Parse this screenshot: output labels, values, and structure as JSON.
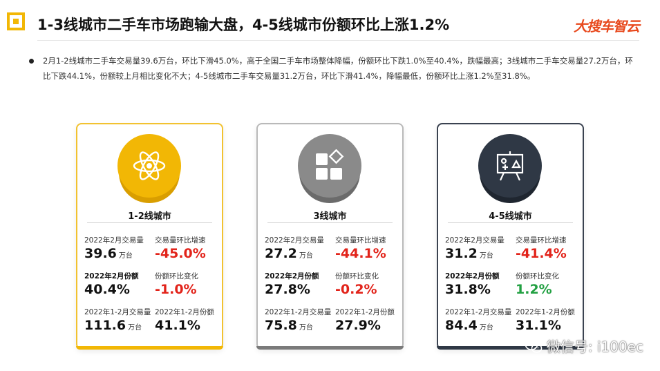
{
  "header": {
    "title": "1-3线城市二手车市场跑输大盘，4-5线城市份额环比上涨1.2%",
    "brand": "大搜车智云"
  },
  "summary": "2月1-2线城市二手车交易量39.6万台，环比下滑45.0%，高于全国二手车市场整体降幅，份额环比下跌1.0%至40.4%，跌幅最高；3线城市二手车交易量27.2万台，环比下跌44.1%，份额较上月相比变化不大；4-5线城市二手车交易量31.2万台，环比下滑41.4%，降幅最低，份额环比上涨1.2%至31.8%。",
  "cards": [
    {
      "tier": "1-2线城市",
      "icon": "atom-icon",
      "color": "#f2b705",
      "volume_label": "2022年2月交易量",
      "volume_value": "39.6",
      "unit": "万台",
      "volume_mom_label": "交易量环比增速",
      "volume_mom_value": "-45.0%",
      "share_label": "2022年2月份额",
      "share_value": "40.4%",
      "share_mom_label": "份额环比变化",
      "share_mom_value": "-1.0%",
      "ytd_volume_label": "2022年1-2月交易量",
      "ytd_volume_value": "111.6",
      "ytd_share_label": "2022年1-2月份额",
      "ytd_share_value": "41.1%"
    },
    {
      "tier": "3线城市",
      "icon": "blocks-icon",
      "color": "#8a8a8a",
      "volume_label": "2022年2月交易量",
      "volume_value": "27.2",
      "unit": "万台",
      "volume_mom_label": "交易量环比增速",
      "volume_mom_value": "-44.1%",
      "share_label": "2022年2月份额",
      "share_value": "27.8%",
      "share_mom_label": "份额环比变化",
      "share_mom_value": "-0.2%",
      "ytd_volume_label": "2022年1-2月交易量",
      "ytd_volume_value": "75.8",
      "ytd_share_label": "2022年1-2月份额",
      "ytd_share_value": "27.9%"
    },
    {
      "tier": "4-5线城市",
      "icon": "presentation-board-icon",
      "color": "#2f3845",
      "volume_label": "2022年2月交易量",
      "volume_value": "31.2",
      "unit": "万台",
      "volume_mom_label": "交易量环比增速",
      "volume_mom_value": "-41.4%",
      "share_label": "2022年2月份额",
      "share_value": "31.8%",
      "share_mom_label": "份额环比变化",
      "share_mom_value": "1.2%",
      "ytd_volume_label": "2022年1-2月交易量",
      "ytd_volume_value": "84.4",
      "ytd_share_label": "2022年1-2月份额",
      "ytd_share_value": "31.1%"
    }
  ],
  "watermark": {
    "text": "微信号: i100ec",
    "icon": "wechat-icon"
  }
}
